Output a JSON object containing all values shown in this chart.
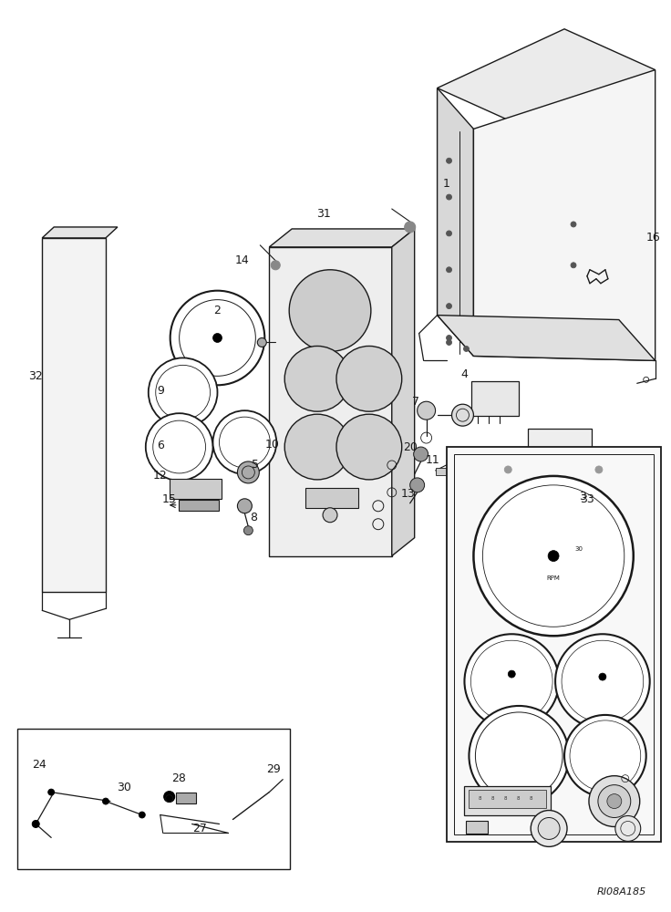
{
  "bg_color": "#ffffff",
  "line_color": "#1a1a1a",
  "fig_width": 7.36,
  "fig_height": 10.0,
  "watermark": "RI08A185"
}
